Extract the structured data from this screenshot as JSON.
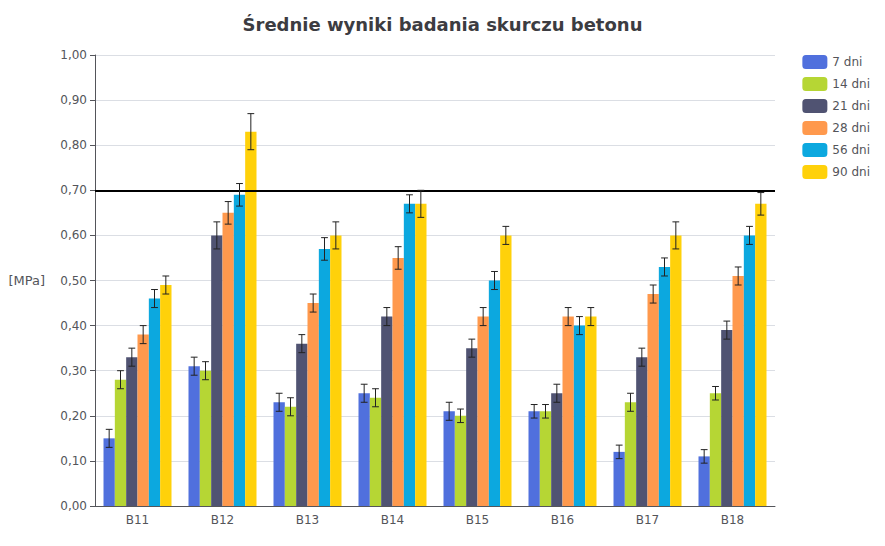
{
  "chart_data": {
    "type": "bar",
    "title": "Średnie wyniki badania skurczu betonu",
    "ylabel": "[MPa]",
    "categories": [
      "B11",
      "B12",
      "B13",
      "B14",
      "B15",
      "B16",
      "B17",
      "B18"
    ],
    "series": [
      {
        "name": "7 dni",
        "values": [
          0.15,
          0.31,
          0.23,
          0.25,
          0.21,
          0.21,
          0.12,
          0.11
        ],
        "errors": [
          0.02,
          0.02,
          0.02,
          0.02,
          0.02,
          0.015,
          0.015,
          0.015
        ]
      },
      {
        "name": "14 dni",
        "values": [
          0.28,
          0.3,
          0.22,
          0.24,
          0.2,
          0.21,
          0.23,
          0.25
        ],
        "errors": [
          0.02,
          0.02,
          0.02,
          0.02,
          0.015,
          0.015,
          0.02,
          0.015
        ]
      },
      {
        "name": "21 dni",
        "values": [
          0.33,
          0.6,
          0.36,
          0.42,
          0.35,
          0.25,
          0.33,
          0.39
        ],
        "errors": [
          0.02,
          0.03,
          0.02,
          0.02,
          0.02,
          0.02,
          0.02,
          0.02
        ]
      },
      {
        "name": "28 dni",
        "values": [
          0.38,
          0.65,
          0.45,
          0.55,
          0.42,
          0.42,
          0.47,
          0.51
        ],
        "errors": [
          0.02,
          0.025,
          0.02,
          0.025,
          0.02,
          0.02,
          0.02,
          0.02
        ]
      },
      {
        "name": "56 dni",
        "values": [
          0.46,
          0.69,
          0.57,
          0.67,
          0.5,
          0.4,
          0.53,
          0.6
        ],
        "errors": [
          0.02,
          0.025,
          0.025,
          0.02,
          0.02,
          0.02,
          0.02,
          0.02
        ]
      },
      {
        "name": "90 dni",
        "values": [
          0.49,
          0.83,
          0.6,
          0.67,
          0.6,
          0.42,
          0.6,
          0.67
        ],
        "errors": [
          0.02,
          0.04,
          0.03,
          0.03,
          0.02,
          0.02,
          0.03,
          0.025
        ]
      }
    ],
    "ylim": [
      0.0,
      1.0
    ],
    "yticks": [
      {
        "value": 0.0,
        "label": "0,00"
      },
      {
        "value": 0.1,
        "label": "0,10"
      },
      {
        "value": 0.2,
        "label": "0,20"
      },
      {
        "value": 0.3,
        "label": "0,30"
      },
      {
        "value": 0.4,
        "label": "0,40"
      },
      {
        "value": 0.5,
        "label": "0,50"
      },
      {
        "value": 0.6,
        "label": "0,60"
      },
      {
        "value": 0.7,
        "label": "0,70"
      },
      {
        "value": 0.8,
        "label": "0,80"
      },
      {
        "value": 0.9,
        "label": "0,90"
      },
      {
        "value": 1.0,
        "label": "1,00"
      }
    ],
    "grid": true,
    "legend": "right",
    "hline": {
      "y": 0.7,
      "color": "#000000"
    }
  }
}
